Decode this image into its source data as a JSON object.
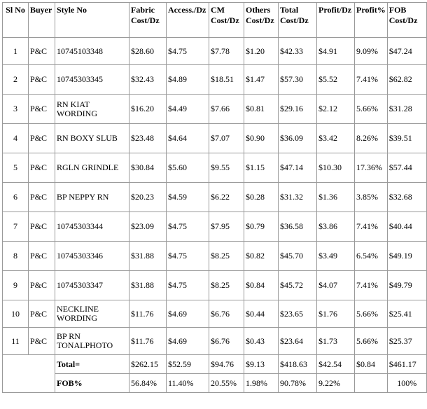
{
  "columns": [
    {
      "key": "sl",
      "lines": [
        "Sl No"
      ]
    },
    {
      "key": "buyer",
      "lines": [
        "Buyer"
      ]
    },
    {
      "key": "style",
      "lines": [
        "Style No"
      ]
    },
    {
      "key": "fabric",
      "lines": [
        "Fabric",
        "Cost/Dz"
      ]
    },
    {
      "key": "access",
      "lines": [
        "Access./Dz"
      ]
    },
    {
      "key": "cm",
      "lines": [
        "CM",
        "Cost/Dz"
      ]
    },
    {
      "key": "others",
      "lines": [
        "Others",
        "Cost/Dz"
      ]
    },
    {
      "key": "total",
      "lines": [
        "Total",
        "Cost/Dz"
      ]
    },
    {
      "key": "profit",
      "lines": [
        "Profit/Dz"
      ]
    },
    {
      "key": "profit_pct",
      "lines": [
        "Profit%"
      ]
    },
    {
      "key": "fob",
      "lines": [
        "FOB",
        "Cost/Dz"
      ]
    }
  ],
  "rows": [
    {
      "sl": "1",
      "buyer": "P&C",
      "style": [
        "10745103348"
      ],
      "fabric": "$28.60",
      "access": "$4.75",
      "cm": "$7.78",
      "others": "$1.20",
      "total": "$42.33",
      "profit": "$4.91",
      "profit_pct": "9.09%",
      "fob": "$47.24"
    },
    {
      "sl": "2",
      "buyer": "P&C",
      "style": [
        "10745303345"
      ],
      "fabric": "$32.43",
      "access": "$4.89",
      "cm": "$18.51",
      "others": "$1.47",
      "total": "$57.30",
      "profit": "$5.52",
      "profit_pct": "7.41%",
      "fob": "$62.82"
    },
    {
      "sl": "3",
      "buyer": "P&C",
      "style": [
        "RN KIAT",
        "WORDING"
      ],
      "fabric": "$16.20",
      "access": "$4.49",
      "cm": "$7.66",
      "others": "$0.81",
      "total": "$29.16",
      "profit": "$2.12",
      "profit_pct": "5.66%",
      "fob": "$31.28"
    },
    {
      "sl": "4",
      "buyer": "P&C",
      "style": [
        "RN BOXY SLUB"
      ],
      "fabric": "$23.48",
      "access": "$4.64",
      "cm": "$7.07",
      "others": "$0.90",
      "total": "$36.09",
      "profit": "$3.42",
      "profit_pct": "8.26%",
      "fob": "$39.51"
    },
    {
      "sl": "5",
      "buyer": "P&C",
      "style": [
        "RGLN GRINDLE"
      ],
      "fabric": "$30.84",
      "access": "$5.60",
      "cm": "$9.55",
      "others": "$1.15",
      "total": "$47.14",
      "profit": "$10.30",
      "profit_pct": "17.36%",
      "fob": "$57.44"
    },
    {
      "sl": "6",
      "buyer": "P&C",
      "style": [
        "BP NEPPY RN"
      ],
      "fabric": "$20.23",
      "access": "$4.59",
      "cm": "$6.22",
      "others": "$0.28",
      "total": "$31.32",
      "profit": "$1.36",
      "profit_pct": "3.85%",
      "fob": "$32.68"
    },
    {
      "sl": "7",
      "buyer": "P&C",
      "style": [
        "10745303344"
      ],
      "fabric": "$23.09",
      "access": "$4.75",
      "cm": "$7.95",
      "others": "$0.79",
      "total": "$36.58",
      "profit": "$3.86",
      "profit_pct": "7.41%",
      "fob": "$40.44"
    },
    {
      "sl": "8",
      "buyer": "P&C",
      "style": [
        "10745303346"
      ],
      "fabric": "$31.88",
      "access": "$4.75",
      "cm": "$8.25",
      "others": "$0.82",
      "total": "$45.70",
      "profit": "$3.49",
      "profit_pct": "6.54%",
      "fob": "$49.19"
    },
    {
      "sl": "9",
      "buyer": "P&C",
      "style": [
        "10745303347"
      ],
      "fabric": "$31.88",
      "access": "$4.75",
      "cm": "$8.25",
      "others": "$0.84",
      "total": "$45.72",
      "profit": "$4.07",
      "profit_pct": "7.41%",
      "fob": "$49.79"
    },
    {
      "sl": "10",
      "buyer": "P&C",
      "style": [
        "NECKLINE",
        "WORDING"
      ],
      "fabric": "$11.76",
      "access": "$4.69",
      "cm": "$6.76",
      "others": "$0.44",
      "total": "$23.65",
      "profit": "$1.76",
      "profit_pct": "5.66%",
      "fob": "$25.41"
    },
    {
      "sl": "11",
      "buyer": "P&C",
      "style": [
        "BP RN",
        "TONALPHOTO"
      ],
      "fabric": "$11.76",
      "access": "$4.69",
      "cm": "$6.76",
      "others": "$0.43",
      "total": "$23.64",
      "profit": "$1.73",
      "profit_pct": "5.66%",
      "fob": "$25.37"
    }
  ],
  "totals": {
    "label": "Total=",
    "fabric": "$262.15",
    "access": "$52.59",
    "cm": "$94.76",
    "others": "$9.13",
    "total": "$418.63",
    "profit": "$42.54",
    "profit_pct": "$0.84",
    "fob": "$461.17"
  },
  "fob_pct": {
    "label": "FOB%",
    "fabric": "56.84%",
    "access": "11.40%",
    "cm": "20.55%",
    "others": "1.98%",
    "total": "90.78%",
    "profit": "9.22%",
    "profit_pct": "",
    "fob": "100%"
  }
}
